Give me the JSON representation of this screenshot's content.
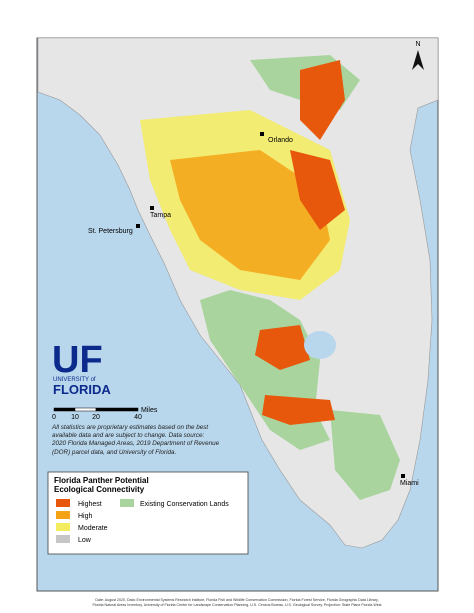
{
  "map": {
    "cities": [
      {
        "label": "Orlando"
      },
      {
        "label": "Tampa"
      },
      {
        "label": "St. Petersburg"
      },
      {
        "label": "Miami"
      }
    ],
    "north_arrow": "N",
    "logo": {
      "mark": "UF",
      "line1": "UNIVERSITY of",
      "line2": "FLORIDA"
    },
    "scale_bar": {
      "ticks": [
        0,
        10,
        20,
        40
      ],
      "unit": "Miles"
    },
    "disclaimer": "All statistics are proprietary estimates based on the best available data and are subject to change. Data source: 2020 Florida Managed Areas, 2019 Department of Revenue (DOR) parcel data, and University of Florida.",
    "legend": {
      "title": "Florida Panther Potential Ecological Connectivity",
      "items": [
        {
          "label": "Highest",
          "color": "#e8580c"
        },
        {
          "label": "High",
          "color": "#f5a316"
        },
        {
          "label": "Moderate",
          "color": "#f3ec5e"
        },
        {
          "label": "Low",
          "color": "#c6c6c6"
        },
        {
          "label": "Existing Conservation Lands",
          "color": "#a9d49d"
        }
      ]
    },
    "footer": [
      "Date: August 2020. Data: Environmental Systems Research Institute, Florida Fish and Wildlife Conservation Commission, Florida Forest Service, Florida Geographic Data Library,",
      "Florida Natural Areas Inventory, University of Florida Center for Landscape Conservation Planning, U.S. Census Bureau, U.S. Geological Survey. Projection: State Plane Florida West"
    ]
  }
}
